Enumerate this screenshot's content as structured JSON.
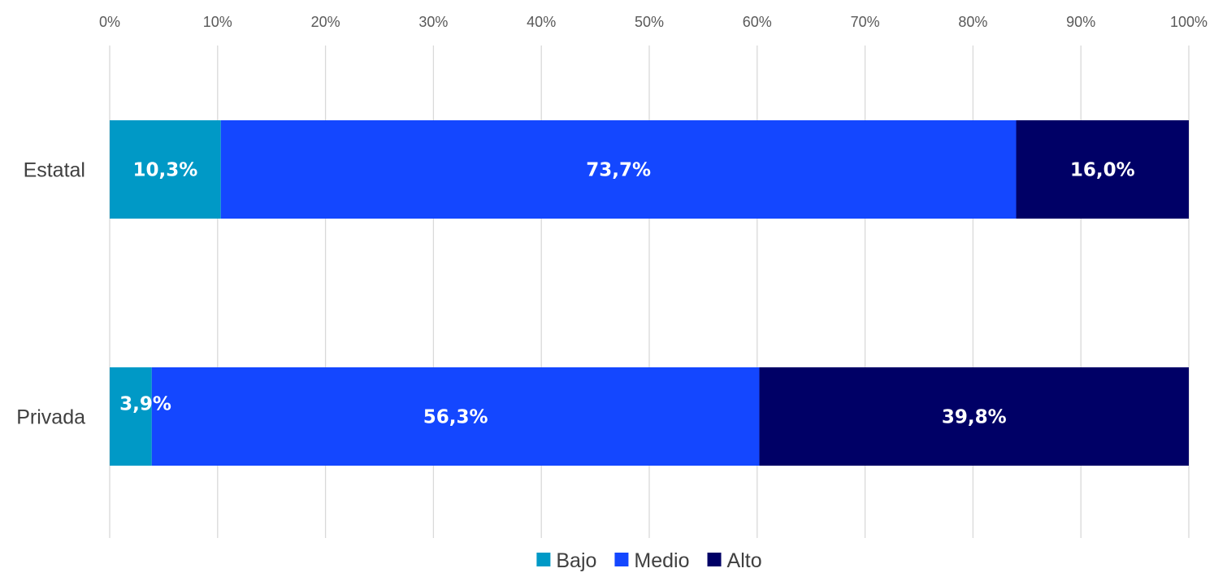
{
  "chart_data": {
    "type": "bar",
    "orientation": "horizontal",
    "stacked": "percent",
    "categories": [
      "Estatal",
      "Privada"
    ],
    "series": [
      {
        "name": "Bajo",
        "values": [
          10.3,
          3.9
        ],
        "labels": [
          "10,3%",
          "3,9%"
        ],
        "color": "#0099C6"
      },
      {
        "name": "Medio",
        "values": [
          73.7,
          56.3
        ],
        "labels": [
          "73,7%",
          "56,3%"
        ],
        "color": "#1447FF"
      },
      {
        "name": "Alto",
        "values": [
          16.0,
          39.8
        ],
        "labels": [
          "16,0%",
          "39,8%"
        ],
        "color": "#000066"
      }
    ],
    "x_ticks": [
      "0%",
      "10%",
      "20%",
      "30%",
      "40%",
      "50%",
      "60%",
      "70%",
      "80%",
      "90%",
      "100%"
    ],
    "xlim": [
      0,
      100
    ],
    "x_axis_position": "top",
    "grid": true,
    "legend": {
      "position": "bottom",
      "entries": [
        "Bajo",
        "Medio",
        "Alto"
      ]
    }
  }
}
